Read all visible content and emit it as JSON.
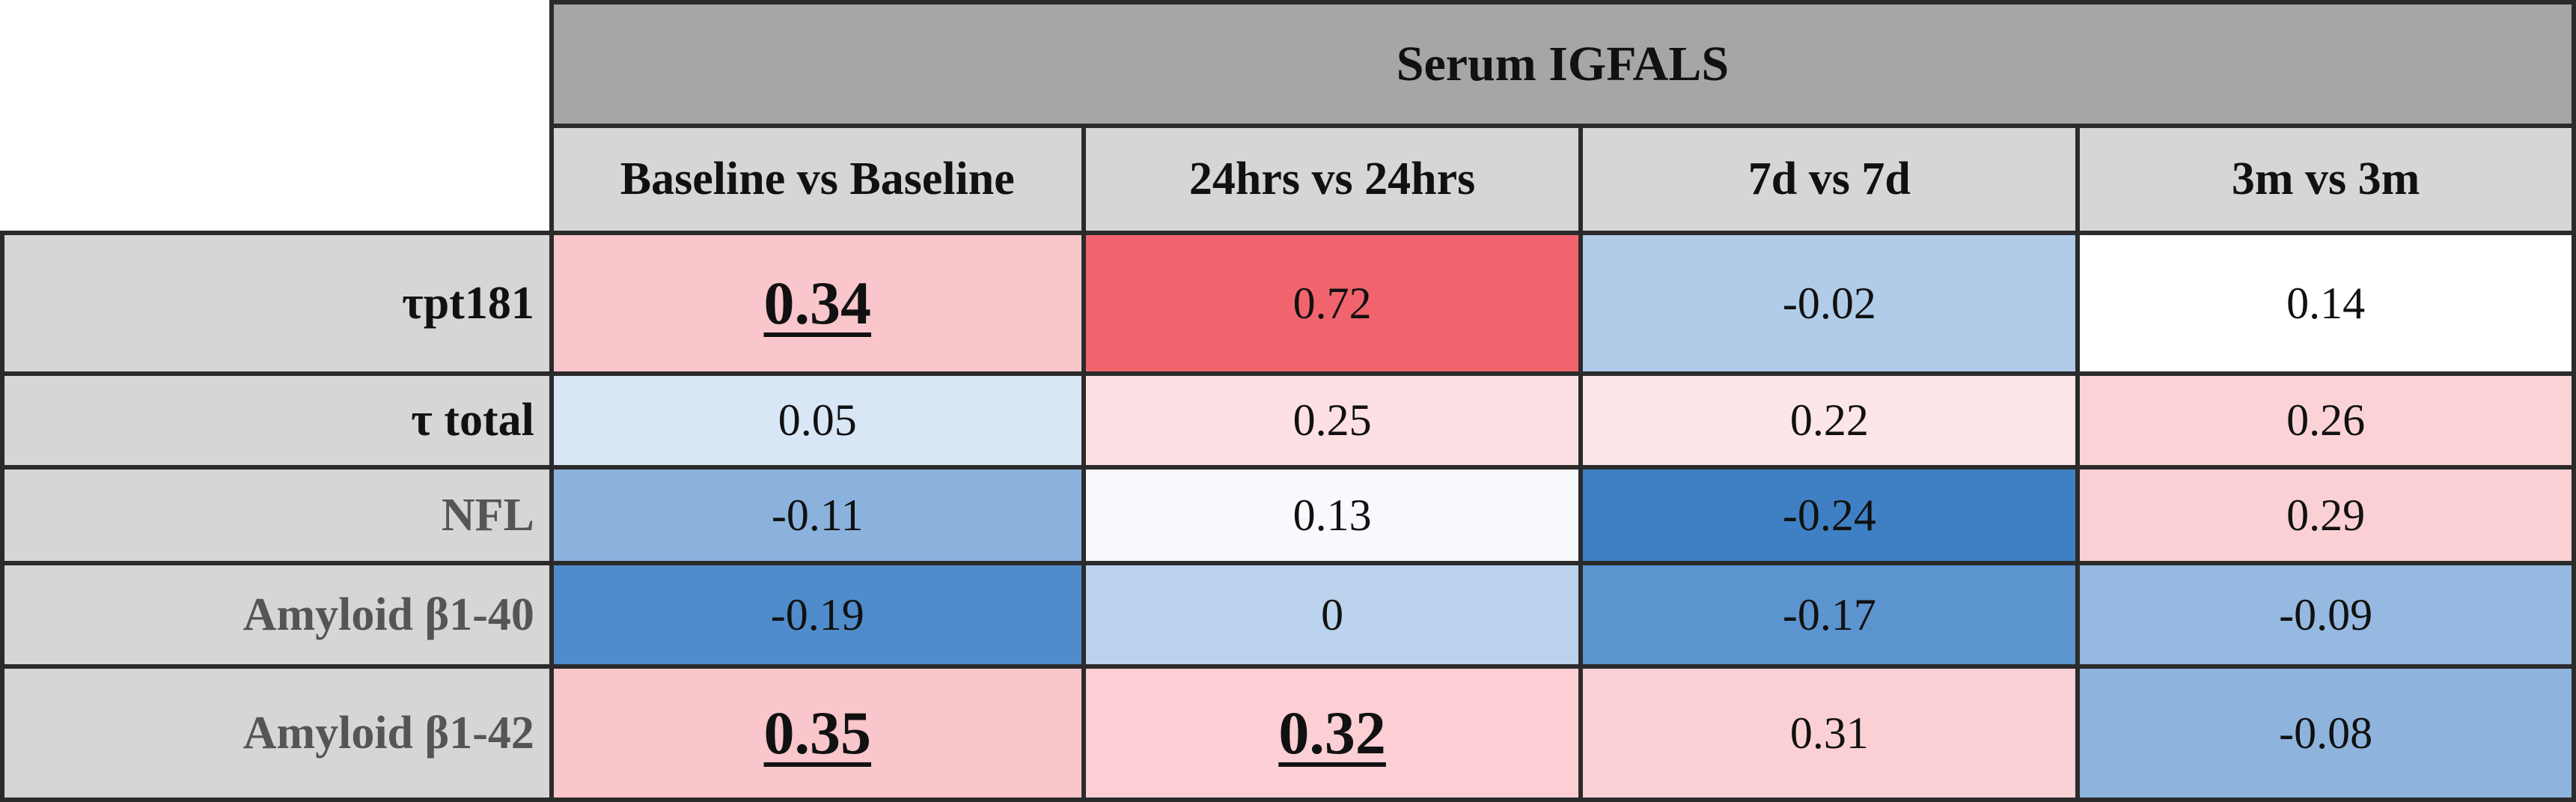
{
  "chart_data": {
    "type": "heatmap",
    "title": "Serum IGFALS",
    "columns": [
      "Baseline vs Baseline",
      "24hrs vs 24hrs",
      "7d vs 7d",
      "3m vs 3m"
    ],
    "rows": [
      {
        "label": "τpt181",
        "values": [
          "0.34",
          "0.72",
          "-0.02",
          "0.14"
        ],
        "significant": [
          true,
          false,
          false,
          false
        ]
      },
      {
        "label": "τ total",
        "values": [
          "0.05",
          "0.25",
          "0.22",
          "0.26"
        ],
        "significant": [
          false,
          false,
          false,
          false
        ]
      },
      {
        "label": "NFL",
        "values": [
          "-0.11",
          "0.13",
          "-0.24",
          "0.29"
        ],
        "significant": [
          false,
          false,
          false,
          false
        ]
      },
      {
        "label": "Amyloid  β1-40",
        "values": [
          "-0.19",
          "0",
          "-0.17",
          "-0.09"
        ],
        "significant": [
          false,
          false,
          false,
          false
        ]
      },
      {
        "label": "Amyloid  β1-42",
        "values": [
          "0.35",
          "0.32",
          "0.31",
          "-0.08"
        ],
        "significant": [
          true,
          true,
          false,
          false
        ]
      }
    ],
    "cell_colors": [
      [
        "#f9c6cb",
        "#f2646d",
        "#b0cce8",
        "#ffffff"
      ],
      [
        "#d8e6f5",
        "#fce0e3",
        "#fde6e9",
        "#fbd3d7"
      ],
      [
        "#8bb2dd",
        "#f8f9fd",
        "#3f80c4",
        "#fbd0d4"
      ],
      [
        "#4f8ccb",
        "#bbd3ec",
        "#5b94ce",
        "#95b9e0"
      ],
      [
        "#f9c6cb",
        "#fbcfd4",
        "#fbd0d4",
        "#8eb4de"
      ]
    ]
  }
}
